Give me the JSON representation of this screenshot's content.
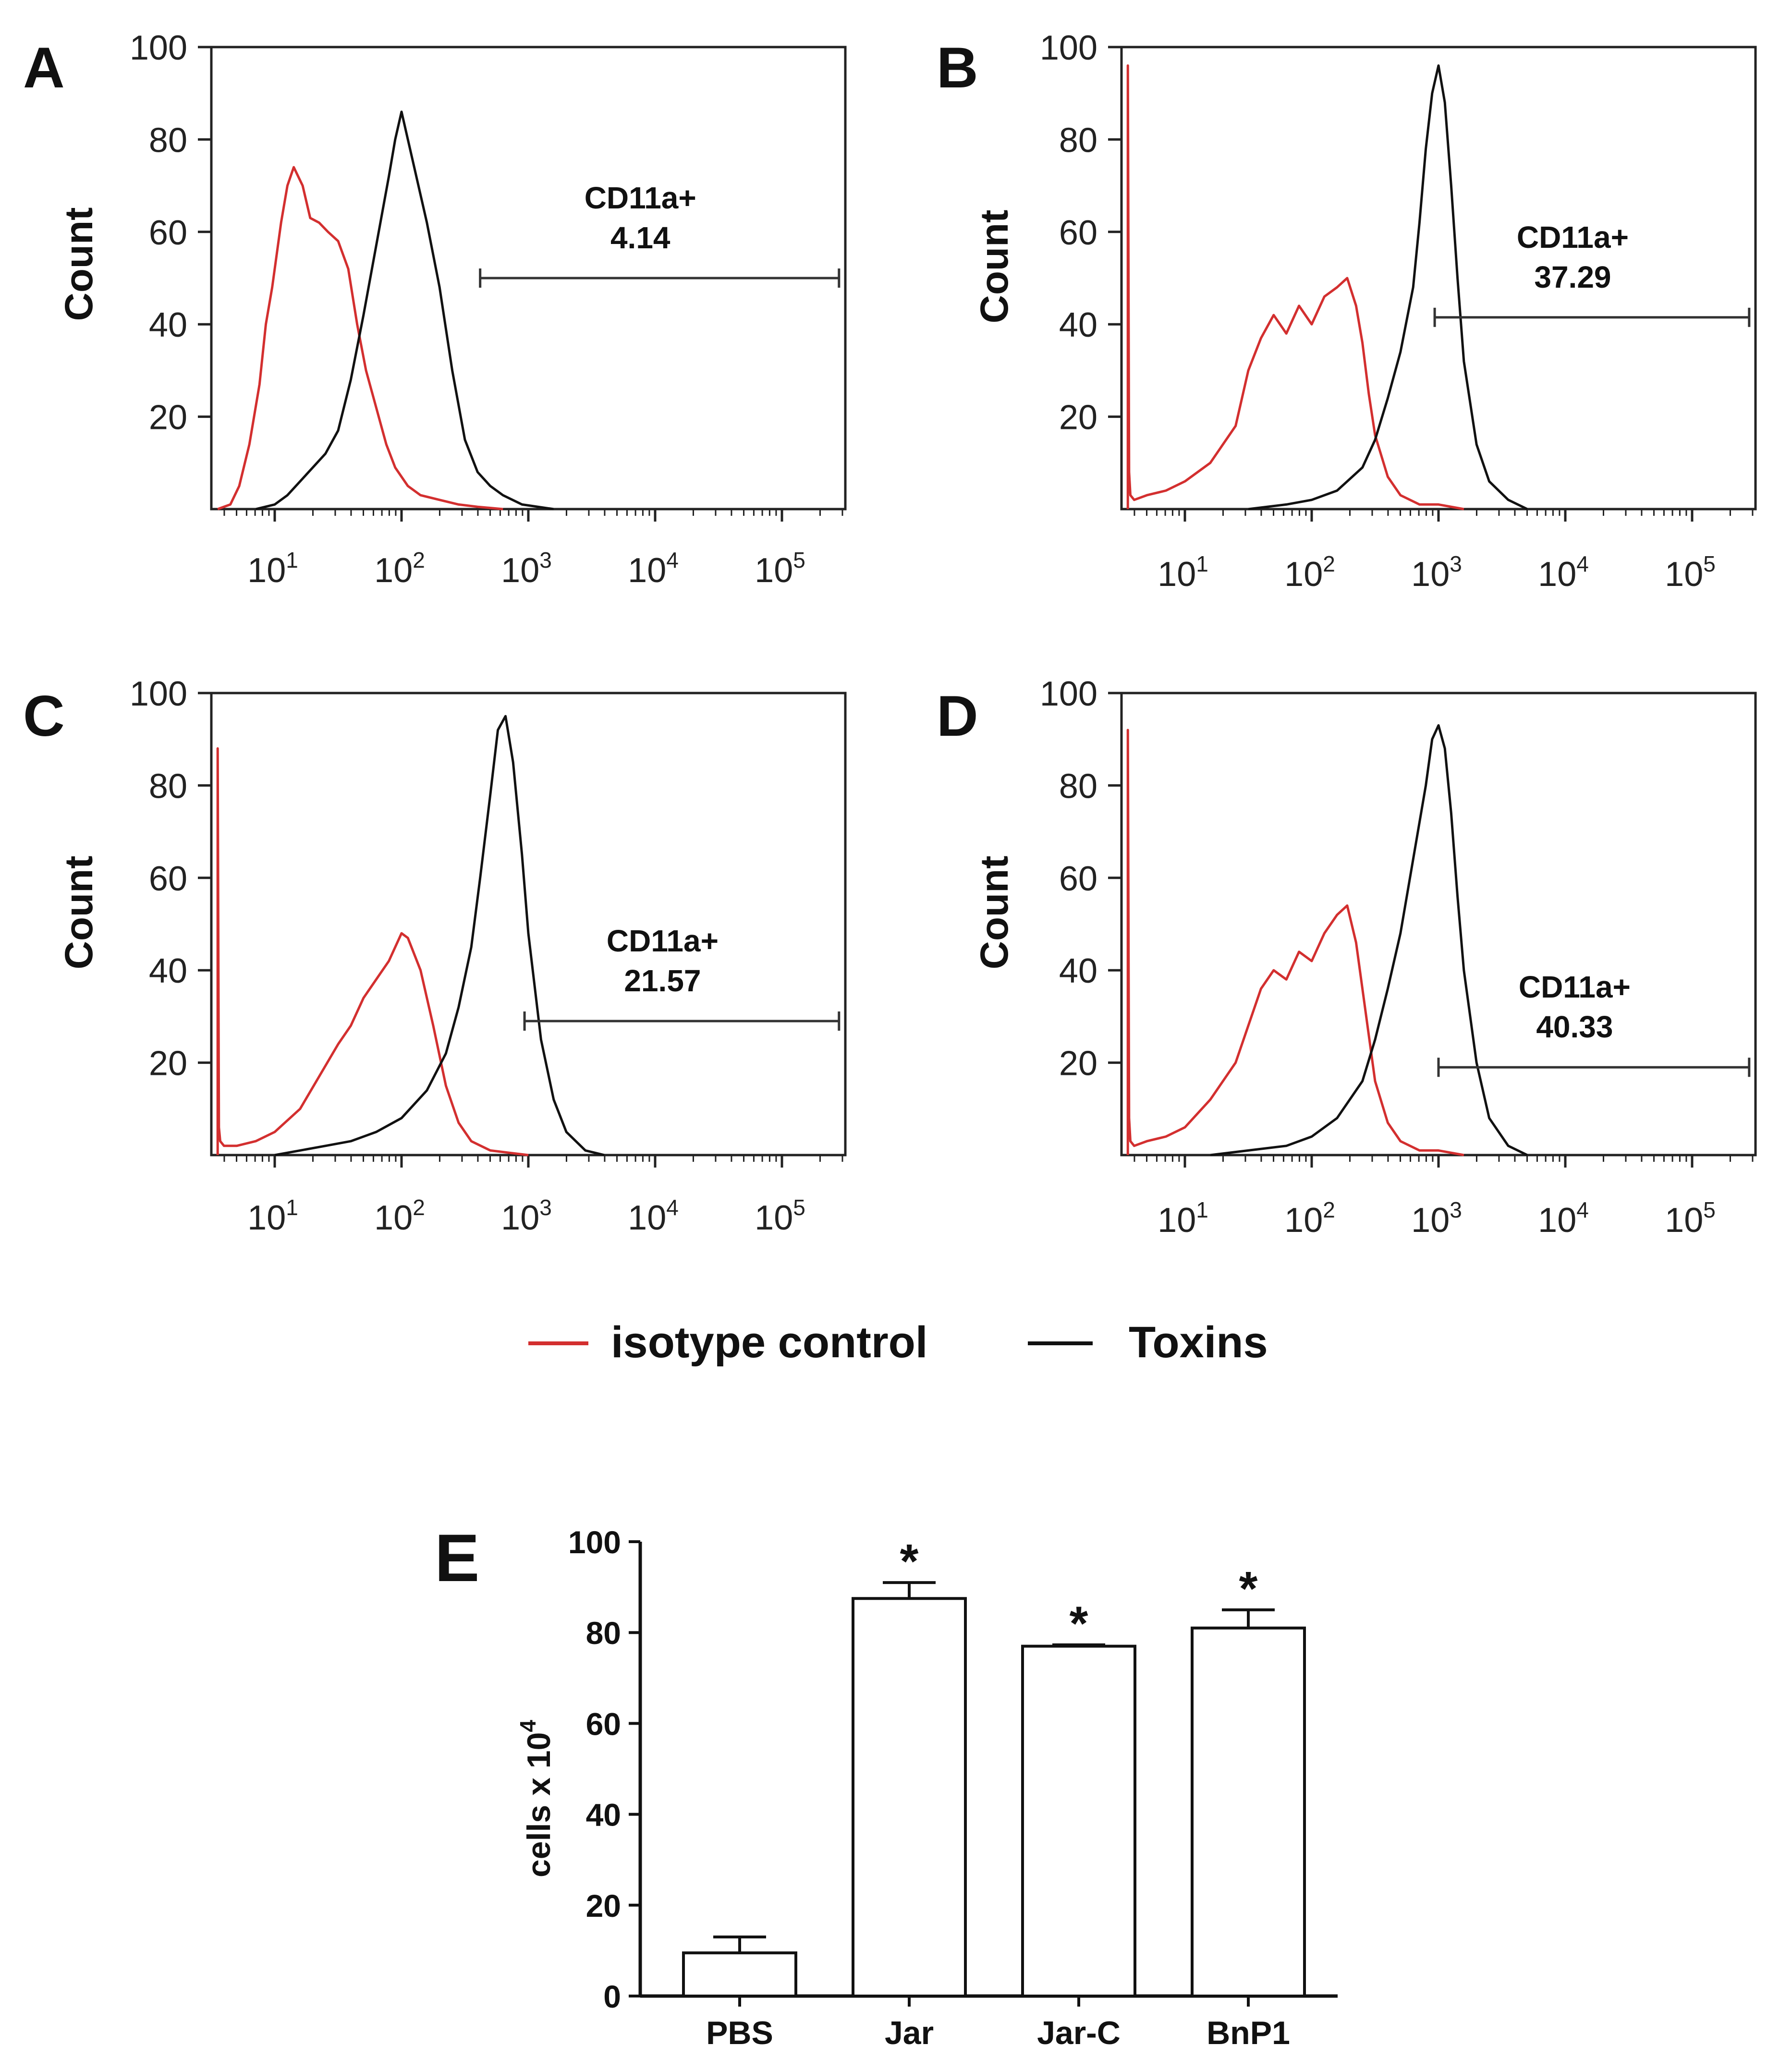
{
  "chart_data": [
    {
      "panel": "A",
      "type": "histogram",
      "ylabel": "Count",
      "ylim": [
        0,
        100
      ],
      "yticks": [
        "20",
        "40",
        "60",
        "80",
        "100"
      ],
      "xscale": "log",
      "xlim": [
        0.5,
        5.5
      ],
      "xtick_bases": [
        "10",
        "10",
        "10",
        "10",
        "10"
      ],
      "xtick_exps": [
        "1",
        "2",
        "3",
        "4",
        "5"
      ],
      "gate": {
        "label": "CD11a+",
        "value": "4.14",
        "x_range": [
          2.62,
          5.45
        ],
        "y": 50
      },
      "series": [
        {
          "name": "isotype control",
          "color": "#d32f2f",
          "x": [
            0.55,
            0.65,
            0.72,
            0.8,
            0.88,
            0.93,
            0.98,
            1.05,
            1.1,
            1.15,
            1.22,
            1.28,
            1.35,
            1.42,
            1.5,
            1.58,
            1.65,
            1.72,
            1.8,
            1.88,
            1.95,
            2.05,
            2.15,
            2.3,
            2.45,
            2.6,
            2.8
          ],
          "y": [
            0,
            1,
            5,
            14,
            27,
            40,
            48,
            62,
            70,
            74,
            70,
            63,
            62,
            60,
            58,
            52,
            40,
            30,
            22,
            14,
            9,
            5,
            3,
            2,
            1,
            0.5,
            0
          ]
        },
        {
          "name": "Toxins",
          "color": "#111111",
          "x": [
            0.85,
            1.0,
            1.1,
            1.2,
            1.3,
            1.4,
            1.5,
            1.6,
            1.7,
            1.8,
            1.9,
            1.95,
            2.0,
            2.05,
            2.1,
            2.2,
            2.3,
            2.4,
            2.5,
            2.6,
            2.7,
            2.8,
            2.95,
            3.2
          ],
          "y": [
            0,
            1,
            3,
            6,
            9,
            12,
            17,
            28,
            42,
            57,
            72,
            80,
            86,
            80,
            74,
            62,
            48,
            30,
            15,
            8,
            5,
            3,
            1,
            0
          ]
        }
      ]
    },
    {
      "panel": "B",
      "type": "histogram",
      "ylabel": "Count",
      "ylim": [
        0,
        100
      ],
      "yticks": [
        "20",
        "40",
        "60",
        "80",
        "100"
      ],
      "xscale": "log",
      "xlim": [
        0.5,
        5.5
      ],
      "xtick_bases": [
        "10",
        "10",
        "10",
        "10",
        "10"
      ],
      "xtick_exps": [
        "1",
        "2",
        "3",
        "4",
        "5"
      ],
      "gate": {
        "label": "CD11a+",
        "value": "37.29",
        "x_range": [
          2.97,
          5.45
        ],
        "y": 41.5
      },
      "series": [
        {
          "name": "isotype control",
          "color": "#d32f2f",
          "x": [
            0.55,
            0.55,
            0.56,
            0.57,
            0.6,
            0.7,
            0.85,
            1.0,
            1.2,
            1.4,
            1.5,
            1.6,
            1.7,
            1.8,
            1.9,
            2.0,
            2.1,
            2.2,
            2.28,
            2.35,
            2.4,
            2.45,
            2.5,
            2.6,
            2.7,
            2.85,
            3.0,
            3.2
          ],
          "y": [
            0,
            96,
            8,
            3,
            2,
            3,
            4,
            6,
            10,
            18,
            30,
            37,
            42,
            38,
            44,
            40,
            46,
            48,
            50,
            44,
            36,
            25,
            16,
            7,
            3,
            1,
            1,
            0
          ]
        },
        {
          "name": "Toxins",
          "color": "#111111",
          "x": [
            1.5,
            1.8,
            2.0,
            2.2,
            2.4,
            2.5,
            2.6,
            2.7,
            2.8,
            2.85,
            2.9,
            2.95,
            3.0,
            3.05,
            3.1,
            3.15,
            3.2,
            3.3,
            3.4,
            3.55,
            3.7
          ],
          "y": [
            0,
            1,
            2,
            4,
            9,
            15,
            24,
            34,
            48,
            62,
            78,
            90,
            96,
            88,
            70,
            50,
            32,
            14,
            6,
            2,
            0
          ]
        }
      ]
    },
    {
      "panel": "C",
      "type": "histogram",
      "ylabel": "Count",
      "ylim": [
        0,
        100
      ],
      "yticks": [
        "20",
        "40",
        "60",
        "80",
        "100"
      ],
      "xscale": "log",
      "xlim": [
        0.5,
        5.5
      ],
      "xtick_bases": [
        "10",
        "10",
        "10",
        "10",
        "10"
      ],
      "xtick_exps": [
        "1",
        "2",
        "3",
        "4",
        "5"
      ],
      "gate": {
        "label": "CD11a+",
        "value": "21.57",
        "x_range": [
          2.97,
          5.45
        ],
        "y": 29
      },
      "series": [
        {
          "name": "isotype control",
          "color": "#d32f2f",
          "x": [
            0.55,
            0.55,
            0.56,
            0.57,
            0.6,
            0.7,
            0.85,
            1.0,
            1.2,
            1.35,
            1.5,
            1.6,
            1.7,
            1.8,
            1.9,
            2.0,
            2.05,
            2.15,
            2.25,
            2.35,
            2.45,
            2.55,
            2.7,
            2.85,
            3.0
          ],
          "y": [
            0,
            88,
            6,
            3,
            2,
            2,
            3,
            5,
            10,
            17,
            24,
            28,
            34,
            38,
            42,
            48,
            47,
            40,
            28,
            15,
            7,
            3,
            1,
            0.5,
            0
          ]
        },
        {
          "name": "Toxins",
          "color": "#111111",
          "x": [
            1.0,
            1.2,
            1.4,
            1.6,
            1.8,
            2.0,
            2.2,
            2.35,
            2.45,
            2.55,
            2.62,
            2.7,
            2.76,
            2.82,
            2.88,
            2.95,
            3.0,
            3.1,
            3.2,
            3.3,
            3.45,
            3.6
          ],
          "y": [
            0,
            1,
            2,
            3,
            5,
            8,
            14,
            22,
            32,
            45,
            60,
            78,
            92,
            95,
            85,
            65,
            48,
            25,
            12,
            5,
            1,
            0
          ]
        }
      ]
    },
    {
      "panel": "D",
      "type": "histogram",
      "ylabel": "Count",
      "ylim": [
        0,
        100
      ],
      "yticks": [
        "20",
        "40",
        "60",
        "80",
        "100"
      ],
      "xscale": "log",
      "xlim": [
        0.5,
        5.5
      ],
      "xtick_bases": [
        "10",
        "10",
        "10",
        "10",
        "10"
      ],
      "xtick_exps": [
        "1",
        "2",
        "3",
        "4",
        "5"
      ],
      "gate": {
        "label": "CD11a+",
        "value": "40.33",
        "x_range": [
          3.0,
          5.45
        ],
        "y": 19
      },
      "series": [
        {
          "name": "isotype control",
          "color": "#d32f2f",
          "x": [
            0.55,
            0.55,
            0.56,
            0.57,
            0.6,
            0.7,
            0.85,
            1.0,
            1.2,
            1.4,
            1.5,
            1.6,
            1.7,
            1.8,
            1.9,
            2.0,
            2.1,
            2.2,
            2.28,
            2.35,
            2.4,
            2.45,
            2.5,
            2.6,
            2.7,
            2.85,
            3.0,
            3.2
          ],
          "y": [
            0,
            92,
            8,
            3,
            2,
            3,
            4,
            6,
            12,
            20,
            28,
            36,
            40,
            38,
            44,
            42,
            48,
            52,
            54,
            46,
            36,
            26,
            16,
            7,
            3,
            1,
            1,
            0
          ]
        },
        {
          "name": "Toxins",
          "color": "#111111",
          "x": [
            1.2,
            1.5,
            1.8,
            2.0,
            2.2,
            2.4,
            2.5,
            2.6,
            2.7,
            2.8,
            2.9,
            2.95,
            3.0,
            3.05,
            3.1,
            3.15,
            3.2,
            3.3,
            3.4,
            3.55,
            3.7
          ],
          "y": [
            0,
            1,
            2,
            4,
            8,
            16,
            25,
            36,
            48,
            64,
            80,
            90,
            93,
            88,
            74,
            56,
            40,
            20,
            8,
            2,
            0
          ]
        }
      ]
    },
    {
      "panel": "E",
      "type": "bar",
      "ylabel_main": "cells  x 10",
      "ylabel_exp": "4",
      "ylim": [
        0,
        100
      ],
      "yticks": [
        "0",
        "20",
        "40",
        "60",
        "80",
        "100"
      ],
      "categories": [
        "PBS",
        "Jar",
        "Jar-C",
        "BnP1"
      ],
      "values": [
        9.5,
        87.5,
        77,
        81
      ],
      "errors": [
        3.5,
        3.5,
        0.3,
        4
      ],
      "significance": [
        "",
        "*",
        "*",
        "*"
      ]
    }
  ],
  "legend": {
    "items": [
      {
        "label": "isotype control",
        "color": "#d32f2f"
      },
      {
        "label": "Toxins",
        "color": "#111111"
      }
    ]
  }
}
